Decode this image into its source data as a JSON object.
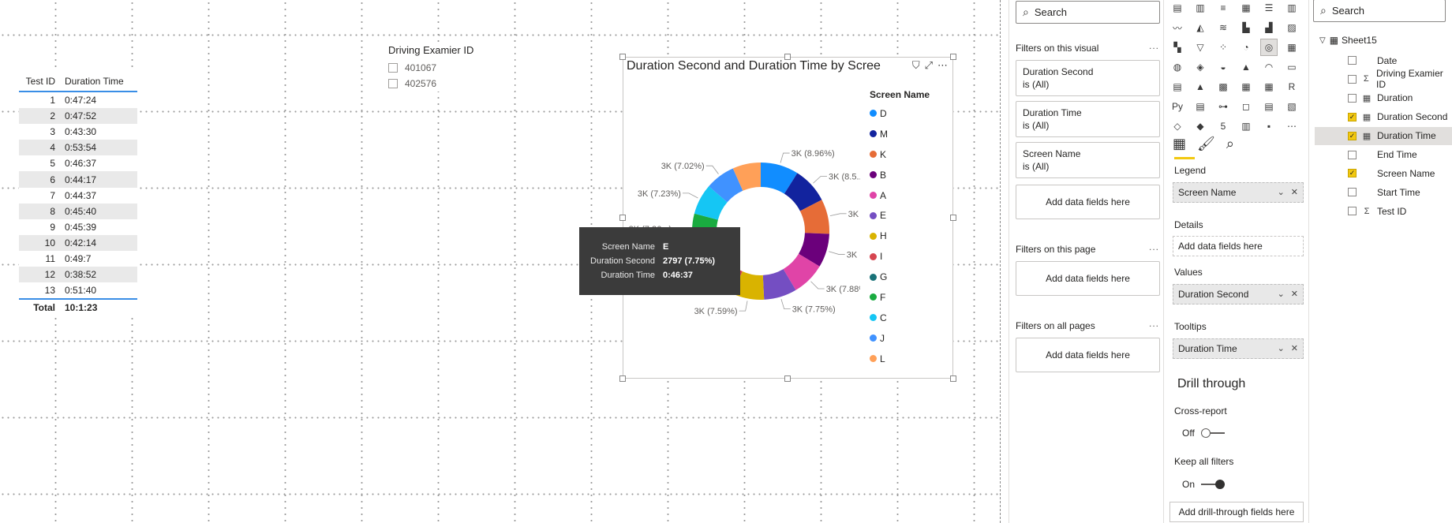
{
  "table": {
    "headers": [
      "Test ID",
      "Duration Time"
    ],
    "rows": [
      [
        "1",
        "0:47:24"
      ],
      [
        "2",
        "0:47:52"
      ],
      [
        "3",
        "0:43:30"
      ],
      [
        "4",
        "0:53:54"
      ],
      [
        "5",
        "0:46:37"
      ],
      [
        "6",
        "0:44:17"
      ],
      [
        "7",
        "0:44:37"
      ],
      [
        "8",
        "0:45:40"
      ],
      [
        "9",
        "0:45:39"
      ],
      [
        "10",
        "0:42:14"
      ],
      [
        "11",
        "0:49:7"
      ],
      [
        "12",
        "0:38:52"
      ],
      [
        "13",
        "0:51:40"
      ]
    ],
    "total_label": "Total",
    "total_value": "10:1:23"
  },
  "slicer": {
    "title": "Driving Examier ID",
    "options": [
      "401067",
      "402576"
    ]
  },
  "visual": {
    "title": "Duration Second and Duration Time by Scree",
    "header_icons": [
      "filter-icon",
      "focus-mode-icon",
      "more-options-icon"
    ],
    "legend_title": "Screen Name",
    "colors": {
      "D": "#118dff",
      "M": "#12239e",
      "K": "#e66c37",
      "B": "#6b007b",
      "A": "#e044a7",
      "E": "#744ec2",
      "H": "#d9b300",
      "I": "#d64550",
      "G": "#197278",
      "F": "#1aab40",
      "C": "#15c6f4",
      "J": "#4092ff",
      "L": "#ffa058"
    }
  },
  "chart_data": {
    "type": "pie",
    "title": "Duration Second and Duration Time by Scree",
    "legend_title": "Screen Name",
    "legend_position": "right",
    "slices": [
      {
        "name": "D",
        "pct": 8.96,
        "label": "3K (8.96%)"
      },
      {
        "name": "M",
        "pct": 8.5,
        "label": "3K (8.5...)"
      },
      {
        "name": "K",
        "pct": 8.17,
        "label": "3K (8.17%)"
      },
      {
        "name": "B",
        "pct": 7.96,
        "label": "3K (7.96%)"
      },
      {
        "name": "A",
        "pct": 7.88,
        "label": "3K (7.88%)"
      },
      {
        "name": "E",
        "pct": 7.75,
        "label": "3K (7.75%)"
      },
      {
        "name": "H",
        "pct": 7.59,
        "label": "3K (7.59%)"
      },
      {
        "name": "I",
        "pct": 7.5,
        "label": ""
      },
      {
        "name": "G",
        "pct": 7.45,
        "label": ""
      },
      {
        "name": "F",
        "pct": 7.36,
        "label": "3K (7.36...)"
      },
      {
        "name": "C",
        "pct": 7.23,
        "label": "3K (7.23%)"
      },
      {
        "name": "J",
        "pct": 7.02,
        "label": "3K (7.02%)"
      },
      {
        "name": "L",
        "pct": 6.63,
        "label": ""
      }
    ],
    "legend": [
      "D",
      "M",
      "K",
      "B",
      "A",
      "E",
      "H",
      "I",
      "G",
      "F",
      "C",
      "J",
      "L"
    ]
  },
  "tooltip": {
    "rows": [
      {
        "key": "Screen Name",
        "value": "E"
      },
      {
        "key": "Duration Second",
        "value": "2797 (7.75%)"
      },
      {
        "key": "Duration Time",
        "value": "0:46:37"
      }
    ]
  },
  "filters_pane": {
    "search_placeholder": "Search",
    "on_visual_title": "Filters on this visual",
    "cards": [
      {
        "name": "Duration Second",
        "state": "is (All)"
      },
      {
        "name": "Duration Time",
        "state": "is (All)"
      },
      {
        "name": "Screen Name",
        "state": "is (All)"
      }
    ],
    "add_label": "Add data fields here",
    "on_page_title": "Filters on this page",
    "all_pages_title": "Filters on all pages",
    "more": "..."
  },
  "viz_pane": {
    "icons": [
      "stacked-bar-icon",
      "stacked-column-icon",
      "clustered-bar-icon",
      "clustered-column-icon",
      "100-bar-icon",
      "100-column-icon",
      "line-chart-icon",
      "area-chart-icon",
      "stacked-area-icon",
      "line-column-icon",
      "line-clustered-icon",
      "ribbon-chart-icon",
      "waterfall-icon",
      "funnel-icon",
      "scatter-icon",
      "pie-chart-icon",
      "donut-chart-icon",
      "treemap-icon",
      "map-icon",
      "filled-map-icon",
      "shape-map-icon",
      "azure-map-icon",
      "gauge-icon",
      "card-icon",
      "multirow-card-icon",
      "kpi-icon",
      "slicer-icon",
      "table-icon",
      "matrix-icon",
      "r-visual-icon",
      "python-visual-icon",
      "key-influencers-icon",
      "decomposition-tree-icon",
      "qa-icon",
      "smart-narrative-icon",
      "paginated-report-icon",
      "power-apps-icon",
      "power-automate-icon",
      "html5-icon",
      "custom-visual-icon",
      "custom-visual-2-icon",
      "more-visuals-icon"
    ],
    "glyphs": [
      "▤",
      "▥",
      "≡",
      "▦",
      "☰",
      "▥",
      "〰",
      "◭",
      "≋",
      "▙",
      "▟",
      "▨",
      "▚",
      "▽",
      "⁘",
      "◔",
      "◎",
      "▦",
      "◍",
      "◈",
      "◒",
      "▲",
      "◠",
      "▭",
      "▤",
      "▲",
      "▩",
      "▦",
      "▦",
      "R",
      "Py",
      "▤",
      "⊶",
      "◻",
      "▤",
      "▧",
      "◇",
      "◆",
      "5",
      "▥",
      "▪",
      "⋯"
    ],
    "selected_icon": 16,
    "wells": {
      "legend_label": "Legend",
      "legend_value": "Screen Name",
      "details_label": "Details",
      "details_value": "Add data fields here",
      "values_label": "Values",
      "values_value": "Duration Second",
      "tooltips_label": "Tooltips",
      "tooltips_value": "Duration Time"
    },
    "drill_title": "Drill through",
    "cross_report_label": "Cross-report",
    "cross_report_state": "Off",
    "keep_filters_label": "Keep all filters",
    "keep_filters_state": "On",
    "drill_add": "Add drill-through fields here"
  },
  "fields_pane": {
    "search_placeholder": "Search",
    "table_name": "Sheet15",
    "fields": [
      {
        "name": "Date",
        "icon": "",
        "checked": false
      },
      {
        "name": "Driving Examier ID",
        "icon": "Σ",
        "checked": false
      },
      {
        "name": "Duration",
        "icon": "▦",
        "checked": false
      },
      {
        "name": "Duration Second",
        "icon": "▦",
        "checked": true
      },
      {
        "name": "Duration Time",
        "icon": "▦",
        "checked": true
      },
      {
        "name": "End Time",
        "icon": "",
        "checked": false
      },
      {
        "name": "Screen Name",
        "icon": "",
        "checked": true
      },
      {
        "name": "Start Time",
        "icon": "",
        "checked": false
      },
      {
        "name": "Test ID",
        "icon": "Σ",
        "checked": false
      }
    ],
    "selected_field": 4
  }
}
